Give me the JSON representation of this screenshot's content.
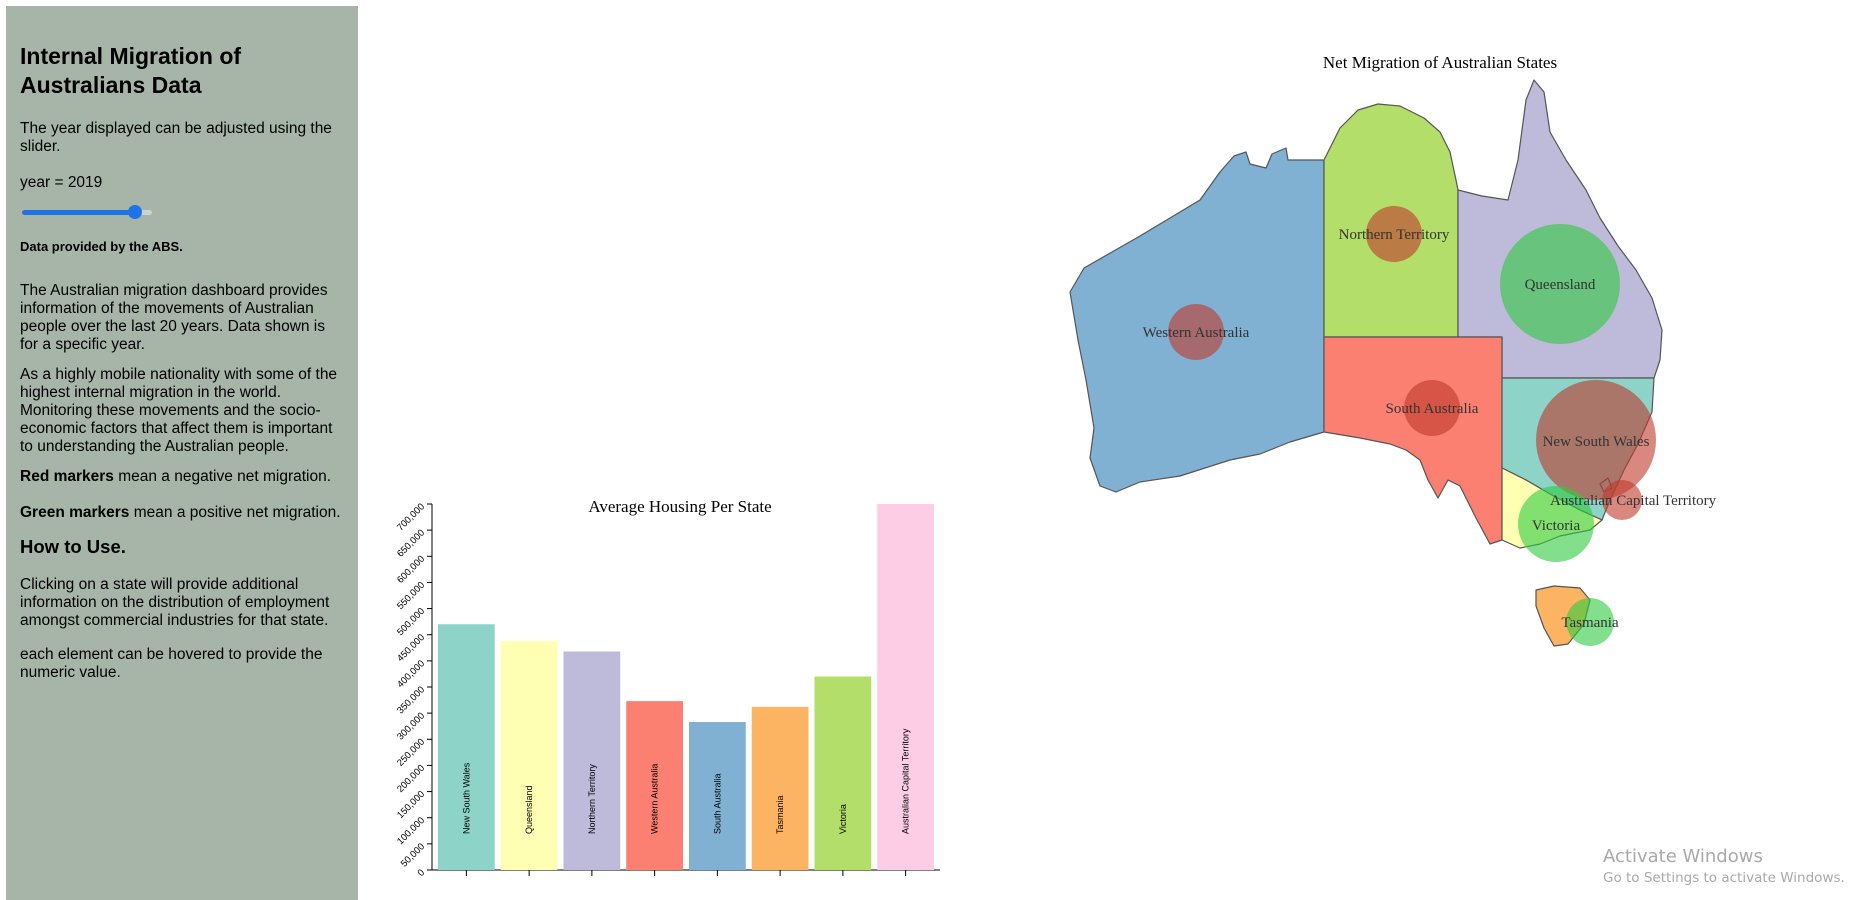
{
  "sidebar": {
    "title": "Internal Migration of Australians Data",
    "instructions": "The year displayed can be adjusted using the slider.",
    "year_label": "year = 2019",
    "year_slider_fraction": 0.87,
    "source": "Data provided by the ABS.",
    "intro": "The Australian migration dashboard provides information of the movements of Australian people over the last 20 years. Data shown is for a specific year.",
    "mobility": "As a highly mobile nationality with some of the highest internal migration in the world. Monitoring these movements and the socio-economic factors that affect them is important to understanding the Australian people.",
    "red_bold": "Red markers",
    "red_text": " mean a negative net migration.",
    "green_bold": "Green markers",
    "green_text": " mean a positive net migration.",
    "how_heading": "How to Use.",
    "how_click": "Clicking on a state will provide additional information on the distribution of employment amongst commercial industries for that state.",
    "how_hover": "each element can be hovered to provide the numeric value."
  },
  "chart_data": [
    {
      "type": "bar",
      "title": "Average Housing Per State",
      "categories": [
        "New South Wales",
        "Queensland",
        "Northern Territory",
        "Western Australia",
        "South Australia",
        "Tasmania",
        "Victoria",
        "Australian Capital Territory"
      ],
      "values": [
        470000,
        438000,
        418000,
        323000,
        283000,
        312000,
        370000,
        700000
      ],
      "colors": [
        "#8dd3c7",
        "#ffffb3",
        "#bebada",
        "#fb8072",
        "#80b1d3",
        "#fdb462",
        "#b3de69",
        "#fccde5"
      ],
      "yticks": [
        "0",
        "50,000",
        "100,000",
        "150,000",
        "200,000",
        "250,000",
        "300,000",
        "350,000",
        "400,000",
        "450,000",
        "500,000",
        "550,000",
        "600,000",
        "650,000",
        "700,000"
      ],
      "ylim": [
        0,
        700000
      ],
      "grid": false
    },
    {
      "type": "map",
      "title": "Net Migration of Australian States",
      "states": [
        {
          "name": "Western Australia",
          "color": "#80b1d3",
          "marker": "negative"
        },
        {
          "name": "Northern Territory",
          "color": "#b3de69",
          "marker": "negative"
        },
        {
          "name": "Queensland",
          "color": "#bebada",
          "marker": "positive"
        },
        {
          "name": "South Australia",
          "color": "#fb8072",
          "marker": "negative"
        },
        {
          "name": "New South Wales",
          "color": "#8dd3c7",
          "marker": "negative"
        },
        {
          "name": "Australian Capital Territory",
          "color": "#8dd3c7",
          "marker": "negative"
        },
        {
          "name": "Victoria",
          "color": "#ffffb3",
          "marker": "positive"
        },
        {
          "name": "Tasmania",
          "color": "#fdb462",
          "marker": "positive"
        }
      ],
      "marker_colors": {
        "negative": "#c0392b",
        "positive": "#2ecc40"
      }
    }
  ],
  "watermark": {
    "line1": "Activate Windows",
    "line2": "Go to Settings to activate Windows."
  }
}
